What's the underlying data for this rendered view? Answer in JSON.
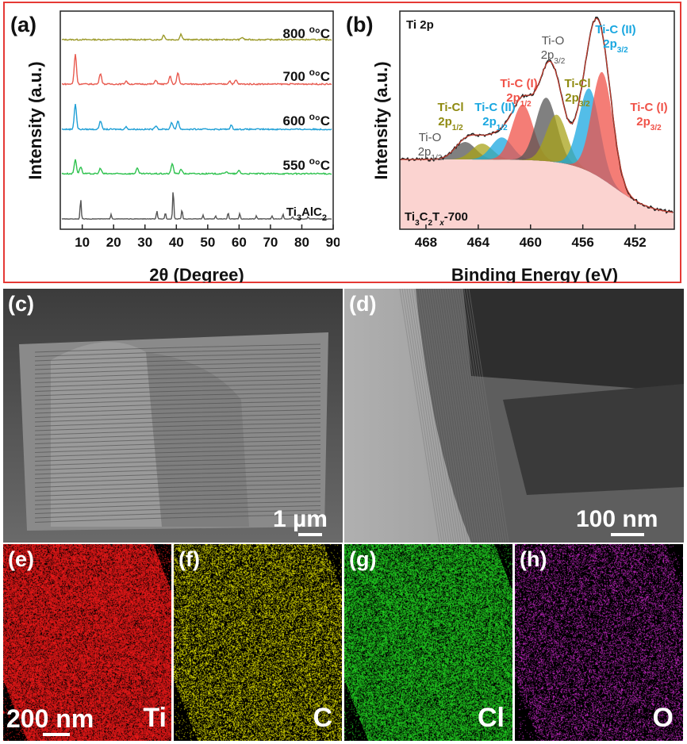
{
  "panels": {
    "a": "(a)",
    "b": "(b)",
    "c": "(c)",
    "d": "(d)",
    "e": "(e)",
    "f": "(f)",
    "g": "(g)",
    "h": "(h)"
  },
  "colors": {
    "frame": "#e53935",
    "s800": "#9c9a2a",
    "s700": "#e85a4f",
    "s600": "#1e9fd6",
    "s550": "#2ec24e",
    "ref": "#555555",
    "ti": "#ff1a1a",
    "c": "#e6e600",
    "cl": "#22dd22",
    "o": "#d12ad1"
  },
  "chart_data": [
    {
      "type": "line",
      "title": "",
      "xlabel": "2θ (Degree)",
      "ylabel": "Intensity (a.u.)",
      "xlim": [
        3,
        90
      ],
      "xticks": [
        "10",
        "20",
        "30",
        "40",
        "50",
        "60",
        "70",
        "80",
        "90"
      ],
      "series": [
        {
          "name": "800 °C",
          "label_main": "800 ",
          "label_unit": "°C",
          "peaks": [
            [
              36,
              6
            ],
            [
              41.5,
              7
            ],
            [
              61,
              3
            ]
          ]
        },
        {
          "name": "700 °C",
          "label_main": "700 ",
          "label_unit": "°C",
          "peaks": [
            [
              7.8,
              38
            ],
            [
              15.8,
              14
            ],
            [
              24,
              4
            ],
            [
              33.5,
              5
            ],
            [
              38,
              10
            ],
            [
              40.5,
              14
            ],
            [
              57,
              4
            ],
            [
              59,
              5
            ]
          ]
        },
        {
          "name": "600 °C",
          "label_main": "600 ",
          "label_unit": "°C",
          "peaks": [
            [
              7.8,
              32
            ],
            [
              15.8,
              11
            ],
            [
              24,
              3
            ],
            [
              33.5,
              5
            ],
            [
              38.5,
              9
            ],
            [
              40.5,
              11
            ],
            [
              57.5,
              5
            ]
          ]
        },
        {
          "name": "550 °C",
          "label_main": "550 ",
          "label_unit": "°C",
          "peaks": [
            [
              7.8,
              18
            ],
            [
              9.5,
              9
            ],
            [
              15.8,
              7
            ],
            [
              27.5,
              7
            ],
            [
              38.7,
              13
            ],
            [
              41.5,
              6
            ],
            [
              56,
              3
            ],
            [
              60,
              4
            ]
          ]
        },
        {
          "name": "Ti3AlC2",
          "label_main": "Ti",
          "label_sub1": "3",
          "label_mid": "AlC",
          "label_sub2": "2",
          "peaks": [
            [
              9.5,
              26
            ],
            [
              19.2,
              6
            ],
            [
              33.8,
              10
            ],
            [
              36.5,
              8
            ],
            [
              39,
              38
            ],
            [
              41.8,
              12
            ],
            [
              48.5,
              5
            ],
            [
              52.5,
              4
            ],
            [
              56.5,
              8
            ],
            [
              60.2,
              7
            ],
            [
              65.5,
              4
            ],
            [
              70.5,
              4
            ],
            [
              74,
              6
            ],
            [
              77,
              3
            ],
            [
              82,
              3
            ]
          ]
        }
      ]
    },
    {
      "type": "line",
      "title": "Ti 2p",
      "sample_main": "Ti",
      "sample_s1": "3",
      "sample_mid1": "C",
      "sample_s2": "2",
      "sample_mid2": "T",
      "sample_x": "x",
      "sample_tail": "-700",
      "xlabel": "Binding Energy (eV)",
      "ylabel": "Intensity (a.u.)",
      "xlim": [
        470,
        449
      ],
      "xticks": [
        "468",
        "464",
        "460",
        "456",
        "452"
      ],
      "components": [
        {
          "name": "Ti-O 2p1/2",
          "line1": "Ti-O",
          "orb": "2p",
          "sub": "1/2",
          "center": 465.0,
          "height": 22,
          "color": "#555555"
        },
        {
          "name": "Ti-Cl 2p1/2",
          "line1": "Ti-Cl",
          "orb": "2p",
          "sub": "1/2",
          "center": 463.7,
          "height": 20,
          "color": "#a8a31a"
        },
        {
          "name": "Ti-C (II) 2p1/2",
          "line1": "Ti-C (II)",
          "orb": "2p",
          "sub": "1/2",
          "center": 462.2,
          "height": 28,
          "color": "#1aa7e0"
        },
        {
          "name": "Ti-C (I) 2p1/2",
          "line1": "Ti-C (I)",
          "orb": "2p",
          "sub": "1/2",
          "center": 460.6,
          "height": 70,
          "color": "#f05248"
        },
        {
          "name": "Ti-O 2p3/2",
          "line1": "Ti-O",
          "orb": "2p",
          "sub": "3/2",
          "center": 458.8,
          "height": 80,
          "color": "#555555"
        },
        {
          "name": "Ti-Cl 2p3/2",
          "line1": "Ti-Cl",
          "orb": "2p",
          "sub": "3/2",
          "center": 458.0,
          "height": 60,
          "color": "#a8a31a"
        },
        {
          "name": "Ti-C (II) 2p3/2",
          "line1": "Ti-C (II)",
          "orb": "2p",
          "sub": "3/2",
          "center": 455.5,
          "height": 105,
          "color": "#1aa7e0"
        },
        {
          "name": "Ti-C (I) 2p3/2",
          "line1": "Ti-C (I)",
          "orb": "2p",
          "sub": "3/2",
          "center": 454.5,
          "height": 135,
          "color": "#f05248"
        }
      ]
    }
  ],
  "images": {
    "c_scale": "1 µm",
    "d_scale": "100 nm",
    "e_scale": "200 nm"
  },
  "maps": [
    {
      "element": "Ti"
    },
    {
      "element": "C"
    },
    {
      "element": "Cl"
    },
    {
      "element": "O"
    }
  ]
}
